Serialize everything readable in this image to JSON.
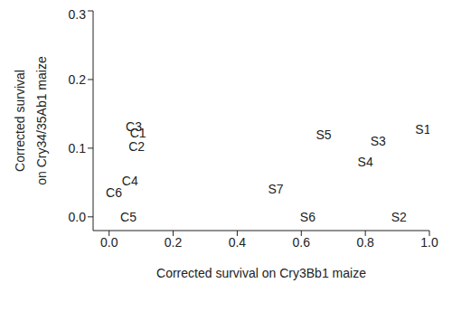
{
  "chart_data": {
    "type": "scatter",
    "xlabel": "Corrected survival on Cry3Bb1 maize",
    "ylabel": [
      "Corrected survival",
      "on Cry34/35Ab1 maize"
    ],
    "labels": [
      "C3",
      "C1",
      "C2",
      "C4",
      "C6",
      "C5",
      "S5",
      "S3",
      "S1",
      "S4",
      "S7",
      "S6",
      "S2"
    ],
    "x": [
      0.077,
      0.09,
      0.086,
      0.065,
      0.015,
      0.06,
      0.67,
      0.84,
      0.98,
      0.8,
      0.52,
      0.62,
      0.905
    ],
    "values": [
      0.132,
      0.122,
      0.102,
      0.052,
      0.035,
      0.0,
      0.12,
      0.11,
      0.127,
      0.08,
      0.04,
      0.0,
      0.0
    ],
    "color": "#222222",
    "marker": "none",
    "xlim": [
      -0.05,
      1.0
    ],
    "ylim": [
      -0.02,
      0.3
    ],
    "xticks": [
      {
        "value": 0,
        "label": "0.0"
      },
      0.2,
      0.4,
      0.6,
      0.8,
      {
        "value": 1,
        "label": "1.0"
      }
    ],
    "yticks": [
      {
        "value": 0,
        "label": "0.0"
      },
      0.1,
      0.2,
      0.3
    ],
    "grid": false
  }
}
